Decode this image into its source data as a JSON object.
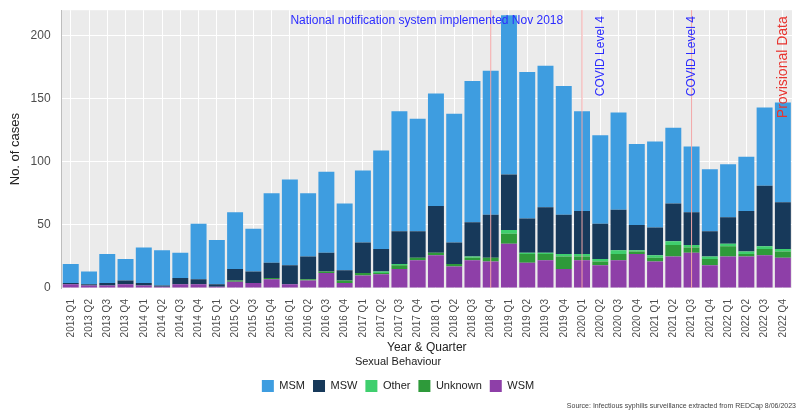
{
  "chart_data": {
    "type": "bar",
    "stacked": true,
    "grid": true,
    "legend": "bottom",
    "legend_title": "Sexual Behaviour",
    "x_label": "Year & Quarter",
    "y_label": "No. of cases",
    "source": "Source: Infectious syphilis surveillance extracted from REDCap 8/06/2023",
    "ylim": [
      0,
      220
    ],
    "yticks": [
      0,
      50,
      100,
      150,
      200
    ],
    "categories": [
      "2013 Q1",
      "2013 Q2",
      "2013 Q3",
      "2013 Q4",
      "2014 Q1",
      "2014 Q2",
      "2014 Q3",
      "2014 Q4",
      "2015 Q1",
      "2015 Q2",
      "2015 Q3",
      "2015 Q4",
      "2016 Q1",
      "2016 Q2",
      "2016 Q3",
      "2016 Q4",
      "2017 Q1",
      "2017 Q2",
      "2017 Q3",
      "2017 Q4",
      "2018 Q1",
      "2018 Q2",
      "2018 Q3",
      "2018 Q4",
      "2019 Q1",
      "2019 Q2",
      "2019 Q3",
      "2019 Q4",
      "2020 Q1",
      "2020 Q2",
      "2020 Q3",
      "2020 Q4",
      "2021 Q1",
      "2021 Q2",
      "2021 Q3",
      "2021 Q4",
      "2022 Q1",
      "2022 Q2",
      "2022 Q3",
      "2022 Q4"
    ],
    "series": [
      {
        "name": "MSM",
        "color": "#3e9de0",
        "values": [
          15,
          10,
          23,
          17,
          28,
          28,
          20,
          44,
          35,
          45,
          34,
          55,
          68,
          50,
          64,
          53,
          57,
          78,
          95,
          89,
          89,
          102,
          112,
          114,
          126,
          116,
          112,
          102,
          79,
          70,
          77,
          64,
          68,
          60,
          52,
          49,
          42,
          43,
          62,
          79
        ]
      },
      {
        "name": "MSW",
        "color": "#17395a",
        "values": [
          1,
          1,
          2,
          3,
          2,
          1,
          5,
          4,
          2,
          9,
          9,
          12,
          15,
          18,
          15,
          8,
          24,
          18,
          26,
          21,
          37,
          17,
          27,
          34,
          44,
          27,
          36,
          31,
          34,
          28,
          32,
          20,
          22,
          30,
          26,
          20,
          21,
          32,
          48,
          37
        ]
      },
      {
        "name": "Other",
        "color": "#3fcf6e",
        "values": [
          0,
          0,
          0,
          0,
          0,
          0,
          0,
          0,
          0,
          0,
          0,
          0,
          0,
          0,
          0,
          0,
          0,
          1,
          1,
          0,
          0,
          0,
          1,
          0,
          3,
          1,
          1,
          2,
          2,
          2,
          3,
          1,
          2,
          3,
          2,
          2,
          2,
          2,
          2,
          2
        ]
      },
      {
        "name": "Unknown",
        "color": "#2e9a3a",
        "values": [
          0,
          0,
          0,
          0,
          0,
          0,
          0,
          0,
          0,
          1,
          0,
          1,
          0,
          1,
          1,
          2,
          2,
          1,
          3,
          2,
          2,
          2,
          2,
          3,
          8,
          7,
          5,
          10,
          3,
          3,
          5,
          2,
          3,
          9,
          4,
          5,
          8,
          2,
          5,
          5
        ]
      },
      {
        "name": "WSM",
        "color": "#8e3fa8",
        "values": [
          3,
          2,
          2,
          3,
          2,
          1,
          3,
          3,
          1,
          5,
          4,
          7,
          3,
          6,
          12,
          4,
          10,
          11,
          15,
          22,
          26,
          17,
          22,
          21,
          35,
          20,
          22,
          15,
          22,
          18,
          22,
          27,
          21,
          25,
          28,
          18,
          25,
          25,
          26,
          24
        ]
      }
    ],
    "reference_lines": [
      {
        "category": "2018 Q4",
        "color": "#f2a6a6"
      },
      {
        "category": "2020 Q1",
        "color": "#f2a6a6"
      },
      {
        "category": "2021 Q3",
        "color": "#f2a6a6"
      }
    ],
    "annotations": [
      {
        "text": "National notification system implemented Nov 2018",
        "color": "#2b2bff"
      },
      {
        "text": "COVID Level 4",
        "category": "2020 Q2",
        "color": "#2b2bff"
      },
      {
        "text": "COVID Level 4",
        "category": "2021 Q3",
        "color": "#2b2bff"
      },
      {
        "text": "Provisional Data",
        "category": "2022 Q4",
        "color": "#e8342f"
      }
    ]
  }
}
